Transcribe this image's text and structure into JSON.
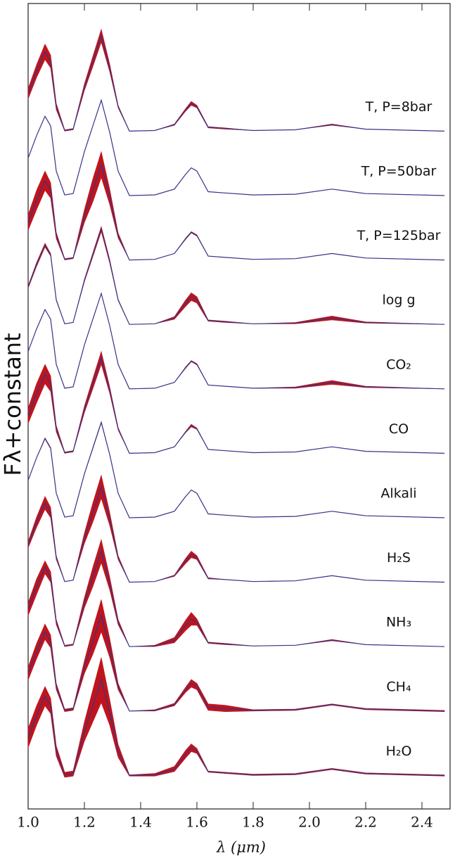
{
  "chart_data": {
    "type": "band-line",
    "x_label": "λ (μm)",
    "y_label": "Fλ+constant",
    "xlim": [
      1.0,
      2.5
    ],
    "ylim": [
      0,
      12.5
    ],
    "xticks": [
      {
        "value": 1.0,
        "label": "1.0"
      },
      {
        "value": 1.2,
        "label": "1.2"
      },
      {
        "value": 1.4,
        "label": "1.4"
      },
      {
        "value": 1.6,
        "label": "1.6"
      },
      {
        "value": 1.8,
        "label": "1.8"
      },
      {
        "value": 2.0,
        "label": "2.0"
      },
      {
        "value": 2.2,
        "label": "2.2"
      },
      {
        "value": 2.4,
        "label": "2.4"
      }
    ],
    "x": [
      1.0,
      1.03,
      1.06,
      1.08,
      1.1,
      1.13,
      1.16,
      1.2,
      1.23,
      1.26,
      1.29,
      1.32,
      1.36,
      1.45,
      1.52,
      1.56,
      1.58,
      1.6,
      1.64,
      1.7,
      1.8,
      1.95,
      2.08,
      2.2,
      2.48
    ],
    "line_color": "#35358a",
    "band_color": "#c0141c",
    "series": [
      {
        "name": "H₂O",
        "values": [
          1.1,
          1.45,
          1.75,
          1.6,
          0.9,
          0.53,
          0.55,
          1.2,
          1.6,
          2.0,
          1.5,
          0.9,
          0.52,
          0.53,
          0.62,
          0.85,
          0.95,
          0.9,
          0.58,
          0.56,
          0.53,
          0.54,
          0.62,
          0.55,
          0.52
        ],
        "errors": [
          0.15,
          0.15,
          0.15,
          0.12,
          0.08,
          0.04,
          0.04,
          0.15,
          0.25,
          0.35,
          0.2,
          0.1,
          0.01,
          0.02,
          0.04,
          0.06,
          0.06,
          0.04,
          0.01,
          0.01,
          0.01,
          0.01,
          0.01,
          0.01,
          0.01
        ]
      },
      {
        "name": "CH₄",
        "values": [
          2.1,
          2.45,
          2.75,
          2.6,
          1.9,
          1.53,
          1.55,
          2.2,
          2.6,
          3.0,
          2.5,
          1.9,
          1.52,
          1.53,
          1.62,
          1.85,
          1.95,
          1.9,
          1.58,
          1.56,
          1.53,
          1.54,
          1.62,
          1.55,
          1.52
        ],
        "errors": [
          0.1,
          0.12,
          0.12,
          0.1,
          0.05,
          0.02,
          0.02,
          0.1,
          0.2,
          0.25,
          0.15,
          0.05,
          0,
          0.01,
          0.02,
          0.04,
          0.06,
          0.05,
          0.05,
          0.05,
          0.01,
          0.01,
          0.01,
          0.01,
          0.01
        ]
      },
      {
        "name": "NH₃",
        "values": [
          3.1,
          3.45,
          3.75,
          3.6,
          2.9,
          2.53,
          2.55,
          3.2,
          3.6,
          4.0,
          3.5,
          2.9,
          2.52,
          2.53,
          2.62,
          2.85,
          2.95,
          2.9,
          2.58,
          2.56,
          2.53,
          2.54,
          2.62,
          2.55,
          2.52
        ],
        "errors": [
          0.1,
          0.12,
          0.1,
          0.08,
          0.04,
          0.01,
          0.01,
          0.08,
          0.15,
          0.18,
          0.1,
          0.04,
          0,
          0.01,
          0.04,
          0.08,
          0.1,
          0.05,
          0.01,
          0.01,
          0,
          0,
          0.01,
          0,
          0
        ]
      },
      {
        "name": "H₂S",
        "values": [
          4.1,
          4.45,
          4.75,
          4.6,
          3.9,
          3.53,
          3.55,
          4.2,
          4.6,
          5.0,
          4.5,
          3.9,
          3.52,
          3.53,
          3.62,
          3.85,
          3.95,
          3.9,
          3.58,
          3.56,
          3.53,
          3.54,
          3.62,
          3.55,
          3.52
        ],
        "errors": [
          0.05,
          0.08,
          0.1,
          0.08,
          0.03,
          0,
          0,
          0.08,
          0.15,
          0.18,
          0.1,
          0.03,
          0,
          0,
          0.01,
          0.04,
          0.05,
          0.03,
          0.01,
          0,
          0,
          0,
          0,
          0,
          0
        ]
      },
      {
        "name": "Alkali",
        "values": [
          5.1,
          5.45,
          5.75,
          5.6,
          4.9,
          4.53,
          4.55,
          5.2,
          5.6,
          6.0,
          5.5,
          4.9,
          4.52,
          4.53,
          4.62,
          4.85,
          4.95,
          4.9,
          4.58,
          4.56,
          4.53,
          4.54,
          4.62,
          4.55,
          4.52
        ],
        "errors": [
          0,
          0,
          0.01,
          0.01,
          0,
          0,
          0,
          0,
          0.01,
          0.01,
          0,
          0,
          0,
          0,
          0,
          0,
          0,
          0,
          0,
          0,
          0,
          0,
          0,
          0,
          0
        ]
      },
      {
        "name": "CO",
        "values": [
          6.1,
          6.45,
          6.75,
          6.6,
          5.9,
          5.53,
          5.55,
          6.2,
          6.6,
          7.0,
          6.5,
          5.9,
          5.52,
          5.53,
          5.62,
          5.85,
          5.95,
          5.9,
          5.58,
          5.56,
          5.53,
          5.54,
          5.62,
          5.55,
          5.52
        ],
        "errors": [
          0.12,
          0.15,
          0.15,
          0.12,
          0.05,
          0.01,
          0.01,
          0.05,
          0.08,
          0.1,
          0.05,
          0.02,
          0,
          0,
          0,
          0.01,
          0.02,
          0.01,
          0,
          0,
          0,
          0,
          0,
          0,
          0
        ]
      },
      {
        "name": "CO₂",
        "values": [
          7.1,
          7.45,
          7.75,
          7.6,
          6.9,
          6.53,
          6.55,
          7.2,
          7.6,
          8.0,
          7.5,
          6.9,
          6.52,
          6.53,
          6.62,
          6.85,
          6.95,
          6.9,
          6.58,
          6.56,
          6.53,
          6.54,
          6.62,
          6.55,
          6.52
        ],
        "errors": [
          0,
          0,
          0,
          0,
          0,
          0,
          0,
          0,
          0,
          0,
          0,
          0,
          0,
          0,
          0,
          0.01,
          0.01,
          0.01,
          0,
          0,
          0,
          0.01,
          0.03,
          0.01,
          0
        ]
      },
      {
        "name": "log g",
        "values": [
          8.1,
          8.45,
          8.75,
          8.6,
          7.9,
          7.53,
          7.55,
          8.2,
          8.6,
          9.0,
          8.5,
          7.9,
          7.52,
          7.53,
          7.62,
          7.85,
          7.95,
          7.9,
          7.58,
          7.56,
          7.53,
          7.54,
          7.62,
          7.55,
          7.52
        ],
        "errors": [
          0.02,
          0.03,
          0.03,
          0.02,
          0.01,
          0,
          0,
          0.02,
          0.03,
          0.04,
          0.03,
          0.01,
          0,
          0,
          0.02,
          0.05,
          0.06,
          0.05,
          0.01,
          0.01,
          0,
          0.01,
          0.03,
          0.01,
          0
        ]
      },
      {
        "name": "T, P=125bar",
        "values": [
          9.1,
          9.45,
          9.75,
          9.6,
          8.9,
          8.53,
          8.55,
          9.2,
          9.6,
          10.0,
          9.5,
          8.9,
          8.52,
          8.53,
          8.62,
          8.85,
          8.95,
          8.9,
          8.58,
          8.56,
          8.53,
          8.54,
          8.62,
          8.55,
          8.52
        ],
        "errors": [
          0.12,
          0.15,
          0.15,
          0.12,
          0.05,
          0.01,
          0.01,
          0.1,
          0.18,
          0.2,
          0.12,
          0.04,
          0,
          0,
          0,
          0.01,
          0.01,
          0.01,
          0,
          0,
          0,
          0,
          0,
          0,
          0
        ]
      },
      {
        "name": "T, P=50bar",
        "values": [
          10.1,
          10.45,
          10.75,
          10.6,
          9.9,
          9.53,
          9.55,
          10.2,
          10.6,
          11.0,
          10.5,
          9.9,
          9.52,
          9.53,
          9.62,
          9.85,
          9.95,
          9.9,
          9.58,
          9.56,
          9.53,
          9.54,
          9.62,
          9.55,
          9.52
        ],
        "errors": [
          0,
          0,
          0,
          0,
          0,
          0,
          0,
          0,
          0,
          0,
          0,
          0,
          0,
          0,
          0,
          0,
          0,
          0,
          0,
          0,
          0,
          0,
          0,
          0,
          0
        ]
      },
      {
        "name": "T, P=8bar",
        "values": [
          11.1,
          11.45,
          11.75,
          11.6,
          10.9,
          10.53,
          10.55,
          11.2,
          11.6,
          12.0,
          11.5,
          10.9,
          10.52,
          10.53,
          10.62,
          10.85,
          10.95,
          10.9,
          10.58,
          10.56,
          10.53,
          10.54,
          10.62,
          10.55,
          10.52
        ],
        "errors": [
          0.08,
          0.1,
          0.12,
          0.1,
          0.05,
          0.01,
          0.01,
          0.05,
          0.08,
          0.1,
          0.06,
          0.02,
          0,
          0,
          0.01,
          0.02,
          0.03,
          0.02,
          0.01,
          0.01,
          0,
          0,
          0.01,
          0,
          0
        ]
      }
    ]
  }
}
